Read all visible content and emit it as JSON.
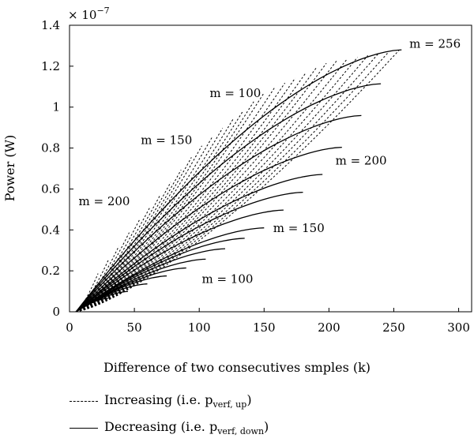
{
  "chart_data": {
    "type": "line",
    "title": "",
    "xlabel": "Difference of two consecutives smples (k)",
    "ylabel": "Power (W)",
    "y_multiplier": "× 10",
    "y_multiplier_exp": "−7",
    "xlim": [
      0,
      310
    ],
    "ylim": [
      0,
      1.4
    ],
    "xticks": [
      "0",
      "50",
      "100",
      "150",
      "200",
      "250",
      "300"
    ],
    "yticks": [
      "0",
      "0.2",
      "0.4",
      "0.6",
      "0.8",
      "1",
      "1.2",
      "1.4"
    ],
    "grid": false,
    "envelope": {
      "upper_k": [
        0,
        20,
        50,
        100,
        150,
        200,
        256
      ],
      "upper_p": [
        0,
        0.17,
        0.42,
        0.8,
        1.07,
        1.22,
        1.28
      ],
      "lower_k": [
        0,
        50,
        100,
        150,
        200,
        256
      ],
      "lower_p": [
        0,
        0.11,
        0.24,
        0.41,
        0.7,
        1.28
      ]
    },
    "decreasing_curves_end_k": [
      256,
      240,
      225,
      210,
      195,
      180,
      165,
      150,
      135,
      120,
      105,
      90,
      75,
      60,
      45,
      30,
      15
    ],
    "increasing_curves_end_k": [
      254,
      246,
      238,
      230,
      222,
      214,
      206,
      198,
      190,
      182,
      174,
      166,
      158,
      150,
      142,
      134,
      126,
      118,
      110,
      102,
      94,
      86,
      78,
      70,
      62,
      54,
      46,
      38,
      30,
      22
    ],
    "annotations": [
      {
        "text": "m = 256",
        "k": 262,
        "p": 1.29
      },
      {
        "text": "m = 100",
        "k": 108,
        "p": 1.05
      },
      {
        "text": "m = 150",
        "k": 55,
        "p": 0.82
      },
      {
        "text": "m = 200",
        "k": 7,
        "p": 0.52
      },
      {
        "text": "m = 200",
        "k": 205,
        "p": 0.72
      },
      {
        "text": "m = 150",
        "k": 157,
        "p": 0.39
      },
      {
        "text": "m = 100",
        "k": 102,
        "p": 0.14
      }
    ]
  },
  "legend": {
    "increasing_main": "Increasing (i.e. p",
    "increasing_sub": "verf, up",
    "increasing_close": ")",
    "decreasing_main": "Decreasing (i.e. p",
    "decreasing_sub": "verf, down",
    "decreasing_close": ")"
  }
}
